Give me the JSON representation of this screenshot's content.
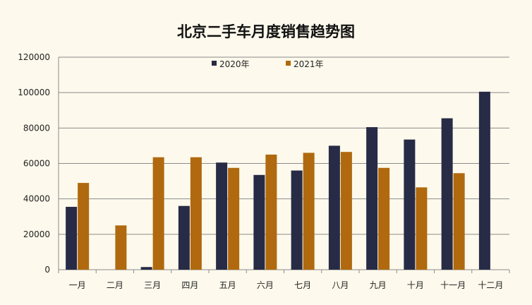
{
  "chart_data": {
    "type": "bar",
    "title": "北京二手车月度销售趋势图",
    "xlabel": "",
    "ylabel": "",
    "categories": [
      "一月",
      "二月",
      "三月",
      "四月",
      "五月",
      "六月",
      "七月",
      "八月",
      "九月",
      "十月",
      "十一月",
      "十二月"
    ],
    "series": [
      {
        "name": "2020年",
        "color": "#272b45",
        "values": [
          35500,
          0,
          1500,
          36000,
          60500,
          53500,
          56000,
          70000,
          80500,
          73500,
          85500,
          100500
        ]
      },
      {
        "name": "2021年",
        "color": "#b0690e",
        "values": [
          49000,
          25000,
          63500,
          63500,
          57500,
          65000,
          66000,
          66500,
          57500,
          46500,
          54500,
          null
        ]
      }
    ],
    "ylim": [
      0,
      120000
    ],
    "yticks": [
      "0",
      "20000",
      "40000",
      "60000",
      "80000",
      "100000",
      "120000"
    ],
    "grid": true,
    "legend_position": "top-center"
  }
}
